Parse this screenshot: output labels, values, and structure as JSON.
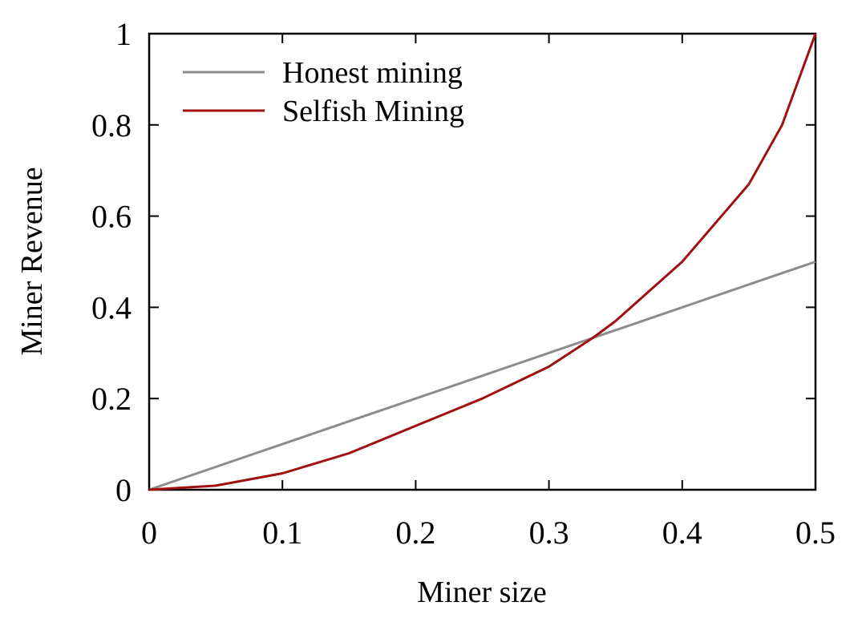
{
  "chart_data": {
    "type": "line",
    "title": "",
    "xlabel": "Miner size",
    "ylabel": "Miner Revenue",
    "xlim": [
      0,
      0.5
    ],
    "ylim": [
      0,
      1
    ],
    "x_ticks": [
      "0",
      "0.1",
      "0.2",
      "0.3",
      "0.4",
      "0.5"
    ],
    "y_ticks": [
      "0",
      "0.2",
      "0.4",
      "0.6",
      "0.8",
      "1"
    ],
    "grid": false,
    "legend_position": "top-left",
    "x": [
      0,
      0.05,
      0.1,
      0.15,
      0.2,
      0.25,
      0.3,
      0.333,
      0.35,
      0.4,
      0.45,
      0.475,
      0.5
    ],
    "series": [
      {
        "name": "Honest mining",
        "color": "#8c8c8c",
        "values": [
          0,
          0.05,
          0.1,
          0.15,
          0.2,
          0.25,
          0.3,
          0.333,
          0.35,
          0.4,
          0.45,
          0.475,
          0.5
        ]
      },
      {
        "name": "Selfish Mining",
        "color": "#a01010",
        "values": [
          0,
          0.009,
          0.036,
          0.08,
          0.14,
          0.2,
          0.27,
          0.333,
          0.37,
          0.5,
          0.67,
          0.8,
          1.0
        ]
      }
    ]
  }
}
